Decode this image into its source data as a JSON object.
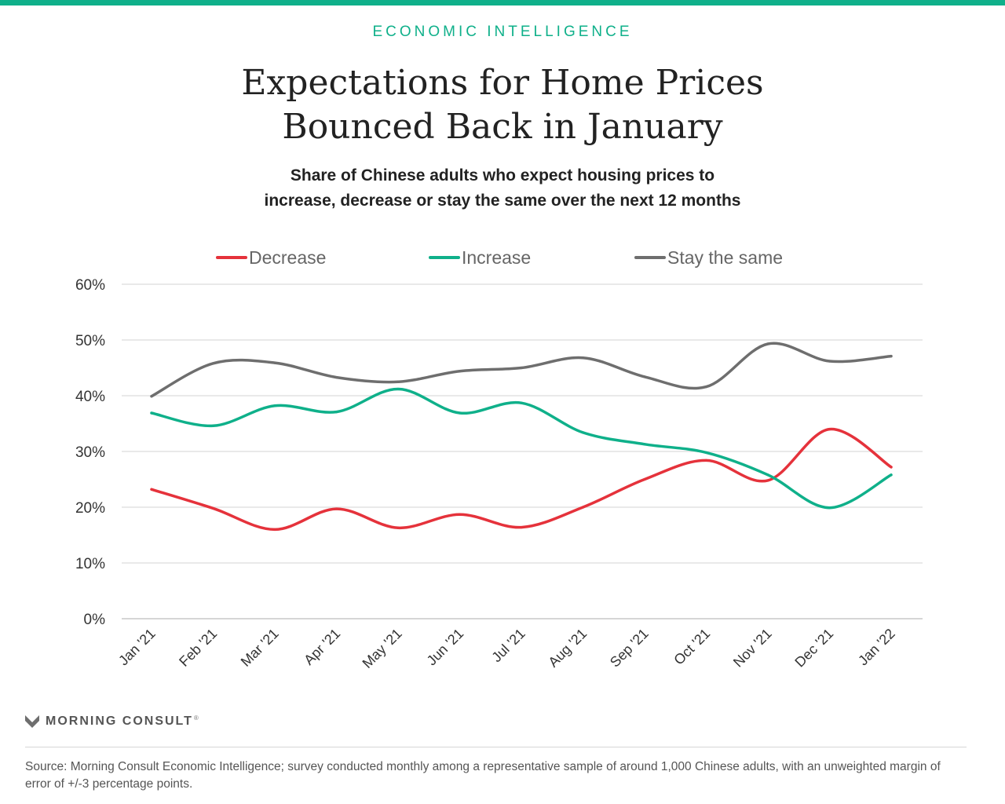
{
  "header": {
    "kicker": "ECONOMIC INTELLIGENCE",
    "title_line1": "Expectations for Home Prices",
    "title_line2": "Bounced Back in January",
    "subtitle_line1": "Share of Chinese adults who expect housing prices to",
    "subtitle_line2": "increase, decrease or stay the same over the next 12 months"
  },
  "chart_data": {
    "type": "line",
    "title": "Expectations for Home Prices Bounced Back in January",
    "subtitle": "Share of Chinese adults who expect housing prices to increase, decrease or stay the same over the next 12 months",
    "categories": [
      "Jan '21",
      "Feb '21",
      "Mar '21",
      "Apr '21",
      "May '21",
      "Jun '21",
      "Jul '21",
      "Aug '21",
      "Sep '21",
      "Oct '21",
      "Nov '21",
      "Dec '21",
      "Jan '22"
    ],
    "y_ticks": [
      "0%",
      "10%",
      "20%",
      "30%",
      "40%",
      "50%",
      "60%"
    ],
    "ylim": [
      0,
      60
    ],
    "y_unit": "%",
    "grid": true,
    "legend_position": "top",
    "series": [
      {
        "name": "Decrease",
        "color": "#e5323b",
        "values": [
          23.2,
          19.8,
          16.0,
          19.7,
          16.3,
          18.7,
          16.4,
          20.0,
          25.0,
          28.4,
          24.8,
          34.0,
          27.2
        ]
      },
      {
        "name": "Increase",
        "color": "#0fb08a",
        "values": [
          36.9,
          34.6,
          38.2,
          37.1,
          41.2,
          36.9,
          38.7,
          33.4,
          31.3,
          29.8,
          25.8,
          19.9,
          25.8
        ]
      },
      {
        "name": "Stay the same",
        "color": "#6e6e6e",
        "values": [
          39.9,
          45.8,
          45.9,
          43.3,
          42.5,
          44.4,
          45.0,
          46.8,
          43.4,
          41.6,
          49.3,
          46.2,
          47.1
        ]
      }
    ]
  },
  "footer": {
    "brand": "MORNING CONSULT",
    "brand_mark": "®",
    "source": "Source: Morning Consult Economic Intelligence; survey conducted monthly among a representative sample of around 1,000 Chinese adults, with an unweighted margin of error of +/-3 percentage points."
  }
}
